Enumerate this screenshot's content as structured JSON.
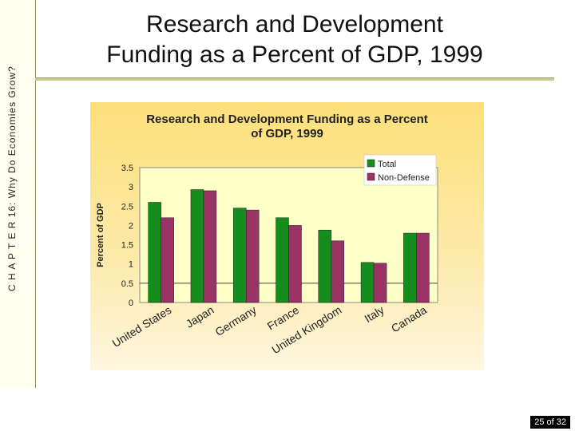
{
  "sidebar": {
    "chapter_label": "C H A P T E R 16: Why Do Economies Grow?"
  },
  "slide": {
    "title_line1": "Research and Development",
    "title_line2": "Funding as a Percent of GDP, 1999",
    "page_number": "25 of 32"
  },
  "colors": {
    "total": "#148c1e",
    "non_defense": "#993366",
    "plot_bg": "#ffffc8"
  },
  "chart_data": {
    "type": "bar",
    "title_line1": "Research and Development Funding as a Percent",
    "title_line2": "of GDP, 1999",
    "ylabel": "Percent of GDP",
    "xlabel": "",
    "ylim": [
      0,
      3.5
    ],
    "yticks": [
      "0",
      "0.5",
      "1",
      "1.5",
      "2",
      "2.5",
      "3",
      "3.5"
    ],
    "categories": [
      "United States",
      "Japan",
      "Germany",
      "France",
      "United Kingdom",
      "Italy",
      "Canada"
    ],
    "series": [
      {
        "name": "Total",
        "values": [
          2.6,
          2.93,
          2.45,
          2.2,
          1.88,
          1.04,
          1.8
        ]
      },
      {
        "name": "Non-Defense",
        "values": [
          2.2,
          2.9,
          2.4,
          2.0,
          1.6,
          1.02,
          1.8
        ]
      }
    ],
    "legend_position": "top-right"
  }
}
